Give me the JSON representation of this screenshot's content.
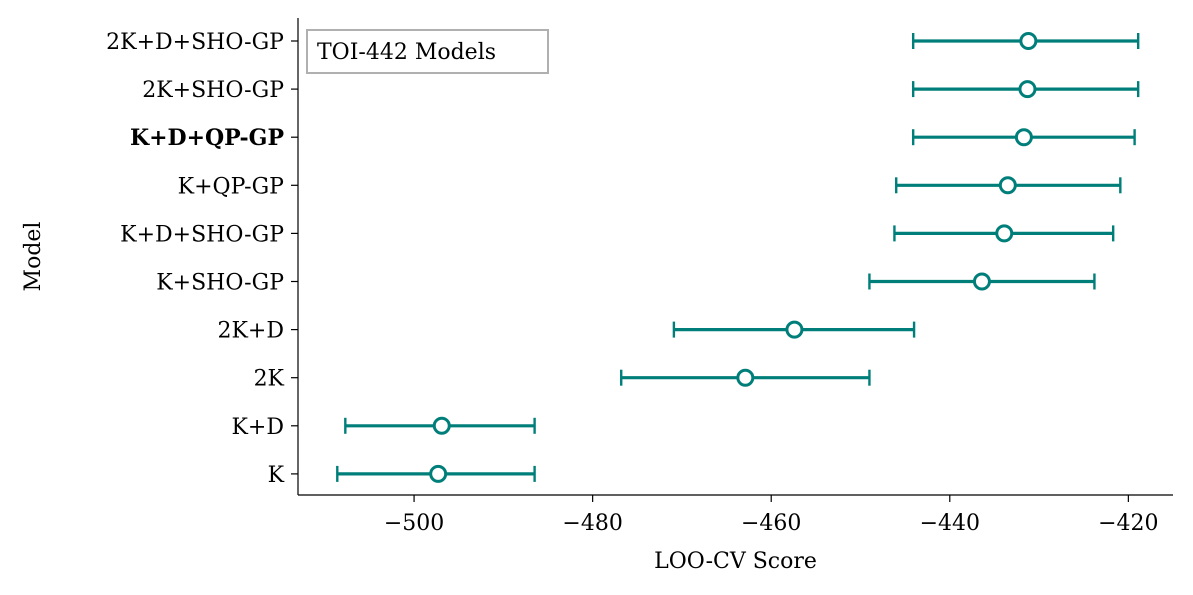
{
  "chart_data": {
    "type": "errorbar",
    "legend": {
      "text": "TOI-442 Models",
      "placement": "top-left"
    },
    "xlabel": "LOO-CV Score",
    "ylabel": "Model",
    "xlim": [
      -513,
      -415
    ],
    "x_ticks": [
      -500,
      -480,
      -460,
      -440,
      -420
    ],
    "x_tick_labels": [
      "−500",
      "−480",
      "−460",
      "−440",
      "−420"
    ],
    "grid": false,
    "colors": {
      "series": "#007f7a"
    },
    "models": [
      {
        "label": "2K+D+SHO-GP",
        "value": -431.2,
        "low": -444.1,
        "high": -418.9,
        "bold": false
      },
      {
        "label": "2K+SHO-GP",
        "value": -431.3,
        "low": -444.1,
        "high": -418.9,
        "bold": false
      },
      {
        "label": "K+D+QP-GP",
        "value": -431.7,
        "low": -444.1,
        "high": -419.3,
        "bold": true
      },
      {
        "label": "K+QP-GP",
        "value": -433.5,
        "low": -446.0,
        "high": -420.9,
        "bold": false
      },
      {
        "label": "K+D+SHO-GP",
        "value": -433.9,
        "low": -446.2,
        "high": -421.7,
        "bold": false
      },
      {
        "label": "K+SHO-GP",
        "value": -436.4,
        "low": -449.0,
        "high": -423.8,
        "bold": false
      },
      {
        "label": "2K+D",
        "value": -457.4,
        "low": -470.9,
        "high": -444.0,
        "bold": false
      },
      {
        "label": "2K",
        "value": -462.9,
        "low": -476.8,
        "high": -449.0,
        "bold": false
      },
      {
        "label": "K+D",
        "value": -496.9,
        "low": -507.7,
        "high": -486.5,
        "bold": false
      },
      {
        "label": "K",
        "value": -497.3,
        "low": -508.6,
        "high": -486.5,
        "bold": false
      }
    ]
  }
}
